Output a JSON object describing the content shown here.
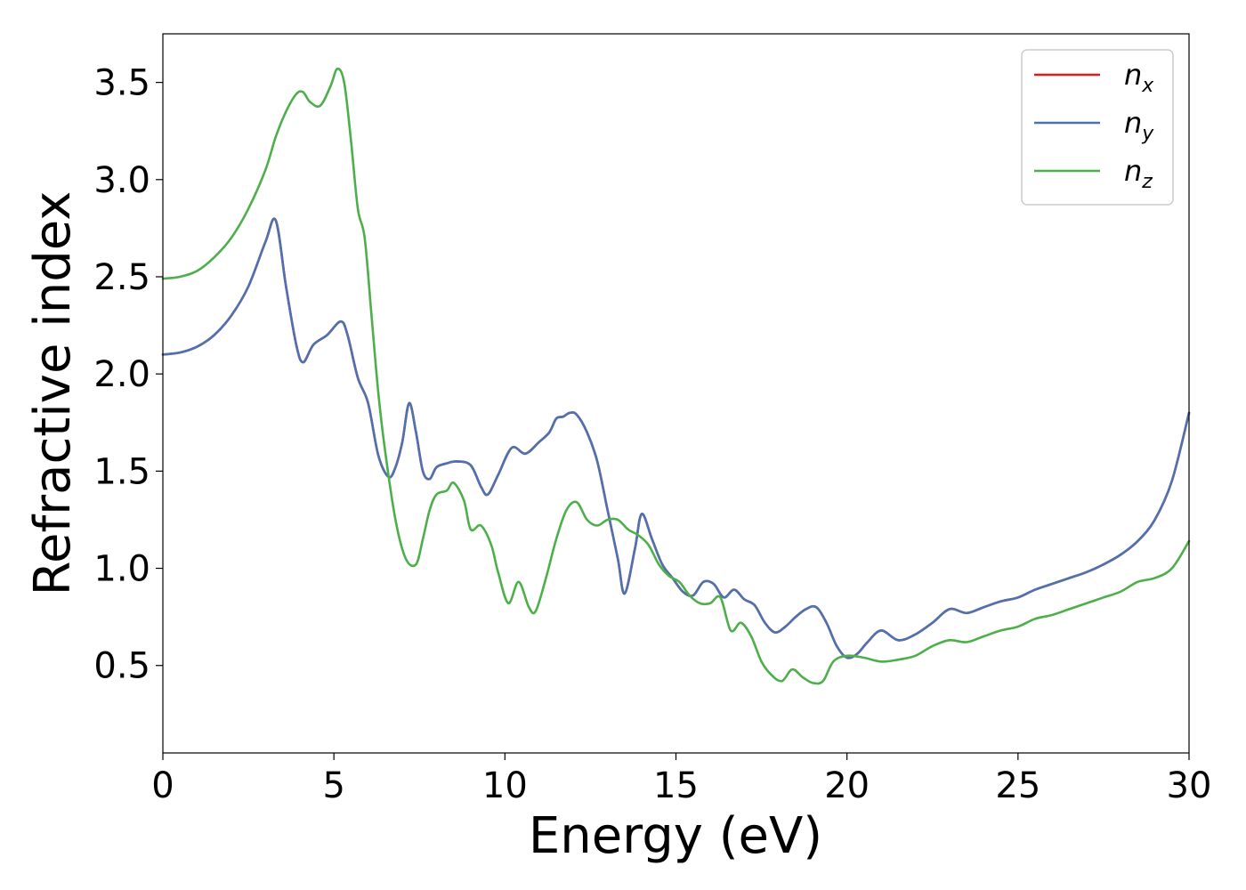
{
  "chart_data": {
    "type": "line",
    "title": "",
    "xlabel": "Energy (eV)",
    "ylabel": "Refractive index",
    "xlim": [
      0,
      30
    ],
    "ylim": [
      0.05,
      3.75
    ],
    "xticks": [
      0,
      5,
      10,
      15,
      20,
      25,
      30
    ],
    "yticks": [
      0.5,
      1.0,
      1.5,
      2.0,
      2.5,
      3.0,
      3.5
    ],
    "xtick_labels": [
      "0",
      "5",
      "10",
      "15",
      "20",
      "25",
      "30"
    ],
    "ytick_labels": [
      "0.5",
      "1.0",
      "1.5",
      "2.0",
      "2.5",
      "3.0",
      "3.5"
    ],
    "grid": false,
    "legend_position": "top-right",
    "series": [
      {
        "name": "n_x",
        "label_base": "n",
        "label_sub": "x",
        "color": "#e41a1c",
        "x": [
          0,
          0.5,
          1,
          1.5,
          2,
          2.5,
          3,
          3.3,
          3.6,
          3.9,
          4.1,
          4.4,
          4.8,
          5.2,
          5.4,
          5.7,
          6,
          6.3,
          6.6,
          6.8,
          7,
          7.2,
          7.4,
          7.6,
          7.8,
          8,
          8.3,
          8.6,
          9,
          9.3,
          9.5,
          9.8,
          10.2,
          10.6,
          11,
          11.3,
          11.5,
          11.7,
          11.9,
          12.1,
          12.4,
          12.7,
          13,
          13.3,
          13.5,
          13.8,
          14,
          14.3,
          14.6,
          14.9,
          15.2,
          15.5,
          15.8,
          16.1,
          16.4,
          16.7,
          17,
          17.3,
          17.6,
          17.9,
          18.2,
          18.5,
          18.8,
          19.1,
          19.4,
          19.7,
          20,
          20.3,
          20.6,
          21,
          21.5,
          22,
          22.5,
          23,
          23.5,
          24,
          24.5,
          25,
          25.5,
          26,
          26.5,
          27,
          27.5,
          28,
          28.5,
          29,
          29.5,
          30
        ],
        "y": [
          2.1,
          2.11,
          2.14,
          2.2,
          2.3,
          2.45,
          2.68,
          2.79,
          2.45,
          2.15,
          2.06,
          2.15,
          2.2,
          2.27,
          2.2,
          1.98,
          1.85,
          1.58,
          1.47,
          1.52,
          1.65,
          1.85,
          1.7,
          1.5,
          1.46,
          1.52,
          1.54,
          1.55,
          1.53,
          1.42,
          1.38,
          1.48,
          1.62,
          1.59,
          1.65,
          1.7,
          1.77,
          1.78,
          1.8,
          1.79,
          1.7,
          1.55,
          1.3,
          1.05,
          0.87,
          1.1,
          1.28,
          1.15,
          1.02,
          0.95,
          0.88,
          0.86,
          0.93,
          0.92,
          0.85,
          0.89,
          0.84,
          0.81,
          0.72,
          0.67,
          0.7,
          0.75,
          0.79,
          0.8,
          0.72,
          0.6,
          0.54,
          0.56,
          0.62,
          0.68,
          0.63,
          0.66,
          0.72,
          0.79,
          0.77,
          0.8,
          0.83,
          0.85,
          0.89,
          0.92,
          0.95,
          0.98,
          1.02,
          1.07,
          1.14,
          1.25,
          1.45,
          1.8
        ]
      },
      {
        "name": "n_y",
        "label_base": "n",
        "label_sub": "y",
        "color": "#4c72b0",
        "x": [
          0,
          0.5,
          1,
          1.5,
          2,
          2.5,
          3,
          3.3,
          3.6,
          3.9,
          4.1,
          4.4,
          4.8,
          5.2,
          5.4,
          5.7,
          6,
          6.3,
          6.6,
          6.8,
          7,
          7.2,
          7.4,
          7.6,
          7.8,
          8,
          8.3,
          8.6,
          9,
          9.3,
          9.5,
          9.8,
          10.2,
          10.6,
          11,
          11.3,
          11.5,
          11.7,
          11.9,
          12.1,
          12.4,
          12.7,
          13,
          13.3,
          13.5,
          13.8,
          14,
          14.3,
          14.6,
          14.9,
          15.2,
          15.5,
          15.8,
          16.1,
          16.4,
          16.7,
          17,
          17.3,
          17.6,
          17.9,
          18.2,
          18.5,
          18.8,
          19.1,
          19.4,
          19.7,
          20,
          20.3,
          20.6,
          21,
          21.5,
          22,
          22.5,
          23,
          23.5,
          24,
          24.5,
          25,
          25.5,
          26,
          26.5,
          27,
          27.5,
          28,
          28.5,
          29,
          29.5,
          30
        ],
        "y": [
          2.1,
          2.11,
          2.14,
          2.2,
          2.3,
          2.45,
          2.68,
          2.79,
          2.45,
          2.15,
          2.06,
          2.15,
          2.2,
          2.27,
          2.2,
          1.98,
          1.85,
          1.58,
          1.47,
          1.52,
          1.65,
          1.85,
          1.7,
          1.5,
          1.46,
          1.52,
          1.54,
          1.55,
          1.53,
          1.42,
          1.38,
          1.48,
          1.62,
          1.59,
          1.65,
          1.7,
          1.77,
          1.78,
          1.8,
          1.79,
          1.7,
          1.55,
          1.3,
          1.05,
          0.87,
          1.1,
          1.28,
          1.15,
          1.02,
          0.95,
          0.88,
          0.86,
          0.93,
          0.92,
          0.85,
          0.89,
          0.84,
          0.81,
          0.72,
          0.67,
          0.7,
          0.75,
          0.79,
          0.8,
          0.72,
          0.6,
          0.54,
          0.56,
          0.62,
          0.68,
          0.63,
          0.66,
          0.72,
          0.79,
          0.77,
          0.8,
          0.83,
          0.85,
          0.89,
          0.92,
          0.95,
          0.98,
          1.02,
          1.07,
          1.14,
          1.25,
          1.45,
          1.8
        ]
      },
      {
        "name": "n_z",
        "label_base": "n",
        "label_sub": "z",
        "color": "#4daf4a",
        "x": [
          0,
          0.5,
          1,
          1.5,
          2,
          2.5,
          3,
          3.3,
          3.6,
          3.9,
          4.1,
          4.3,
          4.6,
          4.9,
          5.1,
          5.3,
          5.5,
          5.7,
          5.9,
          6.1,
          6.3,
          6.5,
          6.8,
          7.1,
          7.4,
          7.6,
          7.8,
          8,
          8.3,
          8.5,
          8.8,
          9,
          9.3,
          9.6,
          9.8,
          10.1,
          10.4,
          10.7,
          10.9,
          11.2,
          11.5,
          11.8,
          12.1,
          12.4,
          12.7,
          13,
          13.3,
          13.6,
          13.9,
          14.2,
          14.5,
          14.8,
          15.1,
          15.4,
          15.7,
          16,
          16.3,
          16.6,
          16.9,
          17.2,
          17.5,
          17.8,
          18.1,
          18.4,
          18.7,
          19,
          19.3,
          19.6,
          20,
          20.5,
          21,
          21.5,
          22,
          22.5,
          23,
          23.5,
          24,
          24.5,
          25,
          25.5,
          26,
          26.5,
          27,
          27.5,
          28,
          28.5,
          29,
          29.5,
          30
        ],
        "y": [
          2.49,
          2.5,
          2.53,
          2.6,
          2.7,
          2.85,
          3.05,
          3.22,
          3.35,
          3.44,
          3.45,
          3.4,
          3.38,
          3.48,
          3.57,
          3.5,
          3.2,
          2.85,
          2.7,
          2.3,
          1.9,
          1.6,
          1.25,
          1.05,
          1.02,
          1.15,
          1.3,
          1.38,
          1.4,
          1.44,
          1.35,
          1.2,
          1.22,
          1.12,
          0.98,
          0.82,
          0.93,
          0.8,
          0.78,
          0.95,
          1.15,
          1.3,
          1.34,
          1.25,
          1.22,
          1.25,
          1.25,
          1.2,
          1.17,
          1.12,
          1.02,
          0.96,
          0.93,
          0.86,
          0.82,
          0.82,
          0.85,
          0.68,
          0.72,
          0.65,
          0.52,
          0.45,
          0.42,
          0.48,
          0.44,
          0.41,
          0.42,
          0.52,
          0.55,
          0.54,
          0.52,
          0.53,
          0.55,
          0.6,
          0.63,
          0.62,
          0.65,
          0.68,
          0.7,
          0.74,
          0.76,
          0.79,
          0.82,
          0.85,
          0.88,
          0.93,
          0.95,
          1.0,
          1.14
        ]
      }
    ]
  }
}
